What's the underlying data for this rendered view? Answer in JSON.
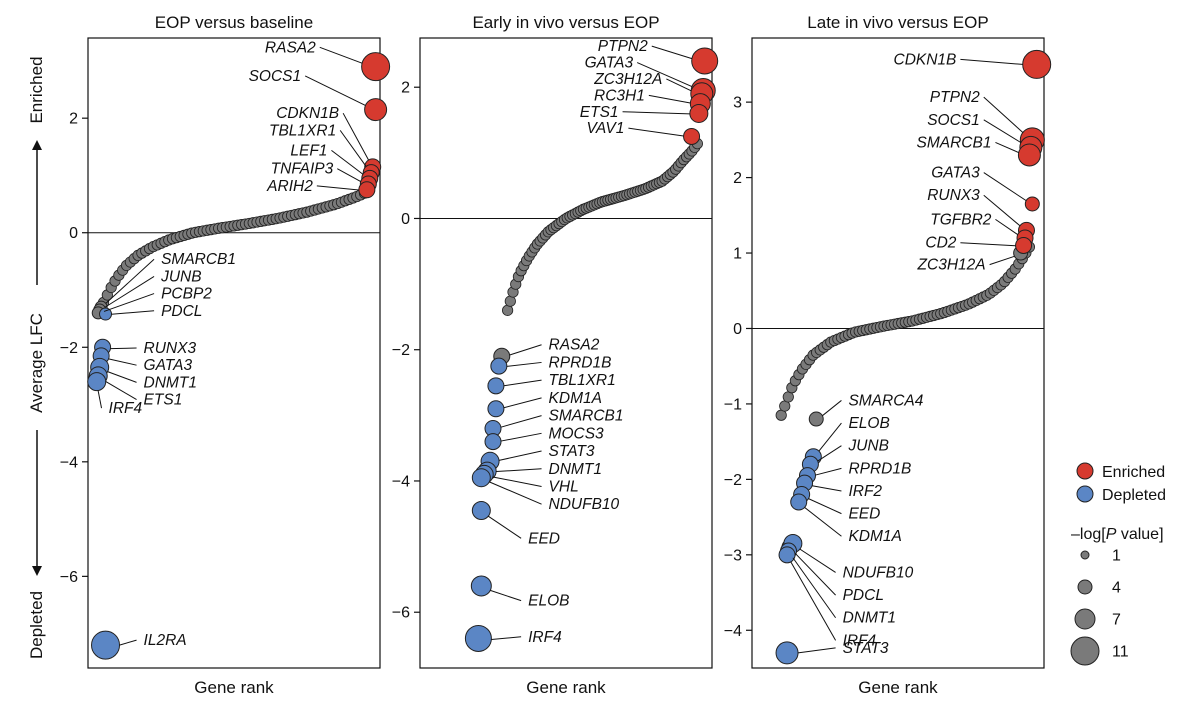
{
  "figure": {
    "ylabel": "Average LFC",
    "ylabel_top": "Enriched",
    "ylabel_bottom": "Depleted",
    "colors": {
      "enriched": "#d63a2f",
      "depleted": "#5b86c5",
      "neutral": "#7a7a7a",
      "stroke": "#222222"
    }
  },
  "legend": {
    "enriched": "Enriched",
    "depleted": "Depleted",
    "size_title_pre": "–log[",
    "size_title_italic": "P",
    "size_title_post": " value]",
    "sizes": [
      {
        "label": "1",
        "value": 1
      },
      {
        "label": "4",
        "value": 4
      },
      {
        "label": "7",
        "value": 7
      },
      {
        "label": "11",
        "value": 11
      }
    ]
  },
  "chart_data": [
    {
      "type": "scatter",
      "title": "EOP versus baseline",
      "xlabel": "Gene rank",
      "ylabel": "Average LFC",
      "ylim": [
        -7.6,
        3.4
      ],
      "yticks": [
        2,
        0,
        -2,
        -4,
        -6
      ],
      "curve": [
        [
          0.04,
          -1.35
        ],
        [
          0.06,
          -1.15
        ],
        [
          0.08,
          -0.95
        ],
        [
          0.1,
          -0.78
        ],
        [
          0.13,
          -0.58
        ],
        [
          0.17,
          -0.4
        ],
        [
          0.22,
          -0.25
        ],
        [
          0.28,
          -0.12
        ],
        [
          0.36,
          0.0
        ],
        [
          0.45,
          0.08
        ],
        [
          0.55,
          0.16
        ],
        [
          0.65,
          0.25
        ],
        [
          0.75,
          0.36
        ],
        [
          0.85,
          0.5
        ],
        [
          0.92,
          0.63
        ],
        [
          0.96,
          0.72
        ]
      ],
      "highlighted": [
        {
          "gene": "RASA2",
          "rank": 0.985,
          "lfc": 2.9,
          "status": "enriched",
          "neglogp": 11,
          "label_x": 0.78,
          "label_y": 3.15,
          "label_dx": 0,
          "align": "end"
        },
        {
          "gene": "SOCS1",
          "rank": 0.985,
          "lfc": 2.15,
          "status": "enriched",
          "neglogp": 8,
          "label_x": 0.73,
          "label_y": 2.65,
          "label_dx": 0,
          "align": "end"
        },
        {
          "gene": "CDKN1B",
          "rank": 0.975,
          "lfc": 1.15,
          "status": "enriched",
          "neglogp": 5,
          "label_x": 0.86,
          "label_y": 2.0,
          "label_dx": 0,
          "align": "end"
        },
        {
          "gene": "TBL1XR1",
          "rank": 0.97,
          "lfc": 1.05,
          "status": "enriched",
          "neglogp": 5,
          "label_x": 0.85,
          "label_y": 1.7,
          "label_dx": 0,
          "align": "end"
        },
        {
          "gene": "LEF1",
          "rank": 0.965,
          "lfc": 0.95,
          "status": "enriched",
          "neglogp": 5,
          "label_x": 0.82,
          "label_y": 1.35,
          "label_dx": 0,
          "align": "end"
        },
        {
          "gene": "TNFAIP3",
          "rank": 0.96,
          "lfc": 0.85,
          "status": "enriched",
          "neglogp": 5,
          "label_x": 0.84,
          "label_y": 1.03,
          "label_dx": 0,
          "align": "end"
        },
        {
          "gene": "ARIH2",
          "rank": 0.955,
          "lfc": 0.75,
          "status": "enriched",
          "neglogp": 5,
          "label_x": 0.77,
          "label_y": 0.73,
          "label_dx": 0,
          "align": "end"
        },
        {
          "gene": "SMARCB1",
          "rank": 0.045,
          "lfc": -1.3,
          "status": "neutral",
          "neglogp": 3,
          "label_x": 0.24,
          "label_y": -0.55,
          "label_dx": 0,
          "align": "start"
        },
        {
          "gene": "JUNB",
          "rank": 0.04,
          "lfc": -1.35,
          "status": "neutral",
          "neglogp": 3,
          "label_x": 0.24,
          "label_y": -0.85,
          "label_dx": 0,
          "align": "start"
        },
        {
          "gene": "PCBP2",
          "rank": 0.035,
          "lfc": -1.4,
          "status": "neutral",
          "neglogp": 3,
          "label_x": 0.24,
          "label_y": -1.15,
          "label_dx": 0,
          "align": "start"
        },
        {
          "gene": "PDCL",
          "rank": 0.06,
          "lfc": -1.42,
          "status": "depleted",
          "neglogp": 3,
          "label_x": 0.24,
          "label_y": -1.45,
          "label_dx": 0,
          "align": "start"
        },
        {
          "gene": "RUNX3",
          "rank": 0.05,
          "lfc": -2.0,
          "status": "depleted",
          "neglogp": 5,
          "label_x": 0.18,
          "label_y": -2.1,
          "label_dx": 0,
          "align": "start"
        },
        {
          "gene": "GATA3",
          "rank": 0.045,
          "lfc": -2.15,
          "status": "depleted",
          "neglogp": 5,
          "label_x": 0.18,
          "label_y": -2.4,
          "label_dx": 0,
          "align": "start"
        },
        {
          "gene": "DNMT1",
          "rank": 0.04,
          "lfc": -2.35,
          "status": "depleted",
          "neglogp": 6,
          "label_x": 0.18,
          "label_y": -2.7,
          "label_dx": 0,
          "align": "start"
        },
        {
          "gene": "ETS1",
          "rank": 0.035,
          "lfc": -2.5,
          "status": "depleted",
          "neglogp": 6,
          "label_x": 0.18,
          "label_y": -3.0,
          "label_dx": 0,
          "align": "start"
        },
        {
          "gene": "IRF4",
          "rank": 0.03,
          "lfc": -2.6,
          "status": "depleted",
          "neglogp": 6,
          "label_x": 0.06,
          "label_y": -3.15,
          "label_dx": 0,
          "align": "start"
        },
        {
          "gene": "IL2RA",
          "rank": 0.06,
          "lfc": -7.2,
          "status": "depleted",
          "neglogp": 11,
          "label_x": 0.18,
          "label_y": -7.2,
          "label_dx": 0,
          "align": "start"
        }
      ]
    },
    {
      "type": "scatter",
      "title": "Early in vivo versus EOP",
      "xlabel": "Gene rank",
      "ylabel": "Average LFC",
      "ylim": [
        -6.85,
        2.75
      ],
      "yticks": [
        2,
        0,
        -2,
        -4,
        -6
      ],
      "curve": [
        [
          0.3,
          -1.4
        ],
        [
          0.32,
          -1.1
        ],
        [
          0.34,
          -0.85
        ],
        [
          0.37,
          -0.6
        ],
        [
          0.4,
          -0.4
        ],
        [
          0.44,
          -0.2
        ],
        [
          0.5,
          0.0
        ],
        [
          0.56,
          0.14
        ],
        [
          0.62,
          0.25
        ],
        [
          0.7,
          0.35
        ],
        [
          0.77,
          0.45
        ],
        [
          0.83,
          0.57
        ],
        [
          0.87,
          0.72
        ],
        [
          0.9,
          0.88
        ],
        [
          0.93,
          1.02
        ],
        [
          0.95,
          1.14
        ]
      ],
      "highlighted": [
        {
          "gene": "PTPN2",
          "rank": 0.975,
          "lfc": 2.4,
          "status": "enriched",
          "neglogp": 10,
          "label_x": 0.78,
          "label_y": 2.55,
          "label_dx": 0,
          "align": "end"
        },
        {
          "gene": "GATA3",
          "rank": 0.97,
          "lfc": 1.95,
          "status": "enriched",
          "neglogp": 9,
          "label_x": 0.73,
          "label_y": 2.3,
          "label_dx": 0,
          "align": "end"
        },
        {
          "gene": "ZC3H12A",
          "rank": 0.965,
          "lfc": 1.9,
          "status": "enriched",
          "neglogp": 8,
          "label_x": 0.83,
          "label_y": 2.05,
          "label_dx": 0,
          "align": "end"
        },
        {
          "gene": "RC3H1",
          "rank": 0.96,
          "lfc": 1.75,
          "status": "enriched",
          "neglogp": 7,
          "label_x": 0.77,
          "label_y": 1.8,
          "label_dx": 0,
          "align": "end"
        },
        {
          "gene": "ETS1",
          "rank": 0.955,
          "lfc": 1.6,
          "status": "enriched",
          "neglogp": 6,
          "label_x": 0.68,
          "label_y": 1.55,
          "label_dx": 0,
          "align": "end"
        },
        {
          "gene": "VAV1",
          "rank": 0.93,
          "lfc": 1.25,
          "status": "enriched",
          "neglogp": 5,
          "label_x": 0.7,
          "label_y": 1.3,
          "label_dx": 0,
          "align": "end"
        },
        {
          "gene": "RASA2",
          "rank": 0.28,
          "lfc": -2.1,
          "status": "neutral",
          "neglogp": 5,
          "label_x": 0.43,
          "label_y": -2.0,
          "label_dx": 0,
          "align": "start"
        },
        {
          "gene": "RPRD1B",
          "rank": 0.27,
          "lfc": -2.25,
          "status": "depleted",
          "neglogp": 5,
          "label_x": 0.43,
          "label_y": -2.27,
          "label_dx": 0,
          "align": "start"
        },
        {
          "gene": "TBL1XR1",
          "rank": 0.26,
          "lfc": -2.55,
          "status": "depleted",
          "neglogp": 5,
          "label_x": 0.43,
          "label_y": -2.54,
          "label_dx": 0,
          "align": "start"
        },
        {
          "gene": "KDM1A",
          "rank": 0.26,
          "lfc": -2.9,
          "status": "depleted",
          "neglogp": 5,
          "label_x": 0.43,
          "label_y": -2.81,
          "label_dx": 0,
          "align": "start"
        },
        {
          "gene": "SMARCB1",
          "rank": 0.25,
          "lfc": -3.2,
          "status": "depleted",
          "neglogp": 5,
          "label_x": 0.43,
          "label_y": -3.08,
          "label_dx": 0,
          "align": "start"
        },
        {
          "gene": "MOCS3",
          "rank": 0.25,
          "lfc": -3.4,
          "status": "depleted",
          "neglogp": 5,
          "label_x": 0.43,
          "label_y": -3.35,
          "label_dx": 0,
          "align": "start"
        },
        {
          "gene": "STAT3",
          "rank": 0.24,
          "lfc": -3.7,
          "status": "depleted",
          "neglogp": 6,
          "label_x": 0.43,
          "label_y": -3.62,
          "label_dx": 0,
          "align": "start"
        },
        {
          "gene": "DNMT1",
          "rank": 0.23,
          "lfc": -3.85,
          "status": "depleted",
          "neglogp": 6,
          "label_x": 0.43,
          "label_y": -3.89,
          "label_dx": 0,
          "align": "start"
        },
        {
          "gene": "VHL",
          "rank": 0.22,
          "lfc": -3.9,
          "status": "depleted",
          "neglogp": 6,
          "label_x": 0.43,
          "label_y": -4.16,
          "label_dx": 0,
          "align": "start"
        },
        {
          "gene": "NDUFB10",
          "rank": 0.21,
          "lfc": -3.95,
          "status": "depleted",
          "neglogp": 6,
          "label_x": 0.43,
          "label_y": -4.43,
          "label_dx": 0,
          "align": "start"
        },
        {
          "gene": "EED",
          "rank": 0.21,
          "lfc": -4.45,
          "status": "depleted",
          "neglogp": 6,
          "label_x": 0.36,
          "label_y": -4.95,
          "label_dx": 0,
          "align": "start"
        },
        {
          "gene": "ELOB",
          "rank": 0.21,
          "lfc": -5.6,
          "status": "depleted",
          "neglogp": 7,
          "label_x": 0.36,
          "label_y": -5.9,
          "label_dx": 0,
          "align": "start"
        },
        {
          "gene": "IRF4",
          "rank": 0.2,
          "lfc": -6.4,
          "status": "depleted",
          "neglogp": 10,
          "label_x": 0.36,
          "label_y": -6.45,
          "label_dx": 0,
          "align": "start"
        }
      ]
    },
    {
      "type": "scatter",
      "title": "Late in vivo versus EOP",
      "xlabel": "Gene rank",
      "ylabel": "Average LFC",
      "ylim": [
        -4.5,
        3.85
      ],
      "yticks": [
        3,
        2,
        1,
        0,
        -1,
        -2,
        -3,
        -4
      ],
      "curve": [
        [
          0.1,
          -1.15
        ],
        [
          0.12,
          -0.95
        ],
        [
          0.14,
          -0.75
        ],
        [
          0.17,
          -0.55
        ],
        [
          0.21,
          -0.35
        ],
        [
          0.27,
          -0.18
        ],
        [
          0.35,
          -0.05
        ],
        [
          0.45,
          0.03
        ],
        [
          0.55,
          0.1
        ],
        [
          0.65,
          0.2
        ],
        [
          0.74,
          0.32
        ],
        [
          0.81,
          0.45
        ],
        [
          0.86,
          0.6
        ],
        [
          0.9,
          0.78
        ],
        [
          0.93,
          0.95
        ],
        [
          0.95,
          1.08
        ]
      ],
      "highlighted": [
        {
          "gene": "CDKN1B",
          "rank": 0.975,
          "lfc": 3.5,
          "status": "enriched",
          "neglogp": 11,
          "label_x": 0.7,
          "label_y": 3.5,
          "label_dx": 0,
          "align": "end"
        },
        {
          "gene": "PTPN2",
          "rank": 0.96,
          "lfc": 2.5,
          "status": "enriched",
          "neglogp": 9,
          "label_x": 0.78,
          "label_y": 3.0,
          "label_dx": 0,
          "align": "end"
        },
        {
          "gene": "SOCS1",
          "rank": 0.955,
          "lfc": 2.4,
          "status": "enriched",
          "neglogp": 8,
          "label_x": 0.78,
          "label_y": 2.7,
          "label_dx": 0,
          "align": "end"
        },
        {
          "gene": "SMARCB1",
          "rank": 0.95,
          "lfc": 2.3,
          "status": "enriched",
          "neglogp": 8,
          "label_x": 0.82,
          "label_y": 2.4,
          "label_dx": 0,
          "align": "end"
        },
        {
          "gene": "GATA3",
          "rank": 0.96,
          "lfc": 1.65,
          "status": "enriched",
          "neglogp": 4,
          "label_x": 0.78,
          "label_y": 2.0,
          "label_dx": 0,
          "align": "end"
        },
        {
          "gene": "RUNX3",
          "rank": 0.94,
          "lfc": 1.3,
          "status": "enriched",
          "neglogp": 5,
          "label_x": 0.78,
          "label_y": 1.7,
          "label_dx": 0,
          "align": "end"
        },
        {
          "gene": "TGFBR2",
          "rank": 0.935,
          "lfc": 1.2,
          "status": "enriched",
          "neglogp": 5,
          "label_x": 0.82,
          "label_y": 1.38,
          "label_dx": 0,
          "align": "end"
        },
        {
          "gene": "CD2",
          "rank": 0.93,
          "lfc": 1.1,
          "status": "enriched",
          "neglogp": 5,
          "label_x": 0.7,
          "label_y": 1.07,
          "label_dx": 0,
          "align": "end"
        },
        {
          "gene": "ZC3H12A",
          "rank": 0.92,
          "lfc": 1.0,
          "status": "neutral",
          "neglogp": 4,
          "label_x": 0.8,
          "label_y": 0.78,
          "label_dx": 0,
          "align": "end"
        },
        {
          "gene": "SMARCA4",
          "rank": 0.22,
          "lfc": -1.2,
          "status": "neutral",
          "neglogp": 4,
          "label_x": 0.32,
          "label_y": -1.02,
          "label_dx": 0,
          "align": "start"
        },
        {
          "gene": "ELOB",
          "rank": 0.21,
          "lfc": -1.7,
          "status": "depleted",
          "neglogp": 5,
          "label_x": 0.32,
          "label_y": -1.32,
          "label_dx": 0,
          "align": "start"
        },
        {
          "gene": "JUNB",
          "rank": 0.2,
          "lfc": -1.8,
          "status": "depleted",
          "neglogp": 5,
          "label_x": 0.32,
          "label_y": -1.62,
          "label_dx": 0,
          "align": "start"
        },
        {
          "gene": "RPRD1B",
          "rank": 0.19,
          "lfc": -1.95,
          "status": "depleted",
          "neglogp": 5,
          "label_x": 0.32,
          "label_y": -1.92,
          "label_dx": 0,
          "align": "start"
        },
        {
          "gene": "IRF2",
          "rank": 0.18,
          "lfc": -2.05,
          "status": "depleted",
          "neglogp": 5,
          "label_x": 0.32,
          "label_y": -2.22,
          "label_dx": 0,
          "align": "start"
        },
        {
          "gene": "EED",
          "rank": 0.17,
          "lfc": -2.2,
          "status": "depleted",
          "neglogp": 5,
          "label_x": 0.32,
          "label_y": -2.52,
          "label_dx": 0,
          "align": "start"
        },
        {
          "gene": "KDM1A",
          "rank": 0.16,
          "lfc": -2.3,
          "status": "depleted",
          "neglogp": 5,
          "label_x": 0.32,
          "label_y": -2.82,
          "label_dx": 0,
          "align": "start"
        },
        {
          "gene": "NDUFB10",
          "rank": 0.14,
          "lfc": -2.85,
          "status": "depleted",
          "neglogp": 6,
          "label_x": 0.3,
          "label_y": -3.3,
          "label_dx": 0,
          "align": "start"
        },
        {
          "gene": "PDCL",
          "rank": 0.13,
          "lfc": -2.9,
          "status": "neutral",
          "neglogp": 5,
          "label_x": 0.3,
          "label_y": -3.6,
          "label_dx": 0,
          "align": "start"
        },
        {
          "gene": "DNMT1",
          "rank": 0.125,
          "lfc": -2.95,
          "status": "depleted",
          "neglogp": 5,
          "label_x": 0.3,
          "label_y": -3.9,
          "label_dx": 0,
          "align": "start"
        },
        {
          "gene": "IRF4",
          "rank": 0.12,
          "lfc": -3.0,
          "status": "depleted",
          "neglogp": 5,
          "label_x": 0.3,
          "label_y": -4.2,
          "label_dx": 0,
          "align": "start"
        },
        {
          "gene": "STAT3",
          "rank": 0.12,
          "lfc": -4.3,
          "status": "depleted",
          "neglogp": 8,
          "label_x": 0.3,
          "label_y": -4.3,
          "label_dx": 0,
          "align": "start"
        }
      ]
    }
  ]
}
